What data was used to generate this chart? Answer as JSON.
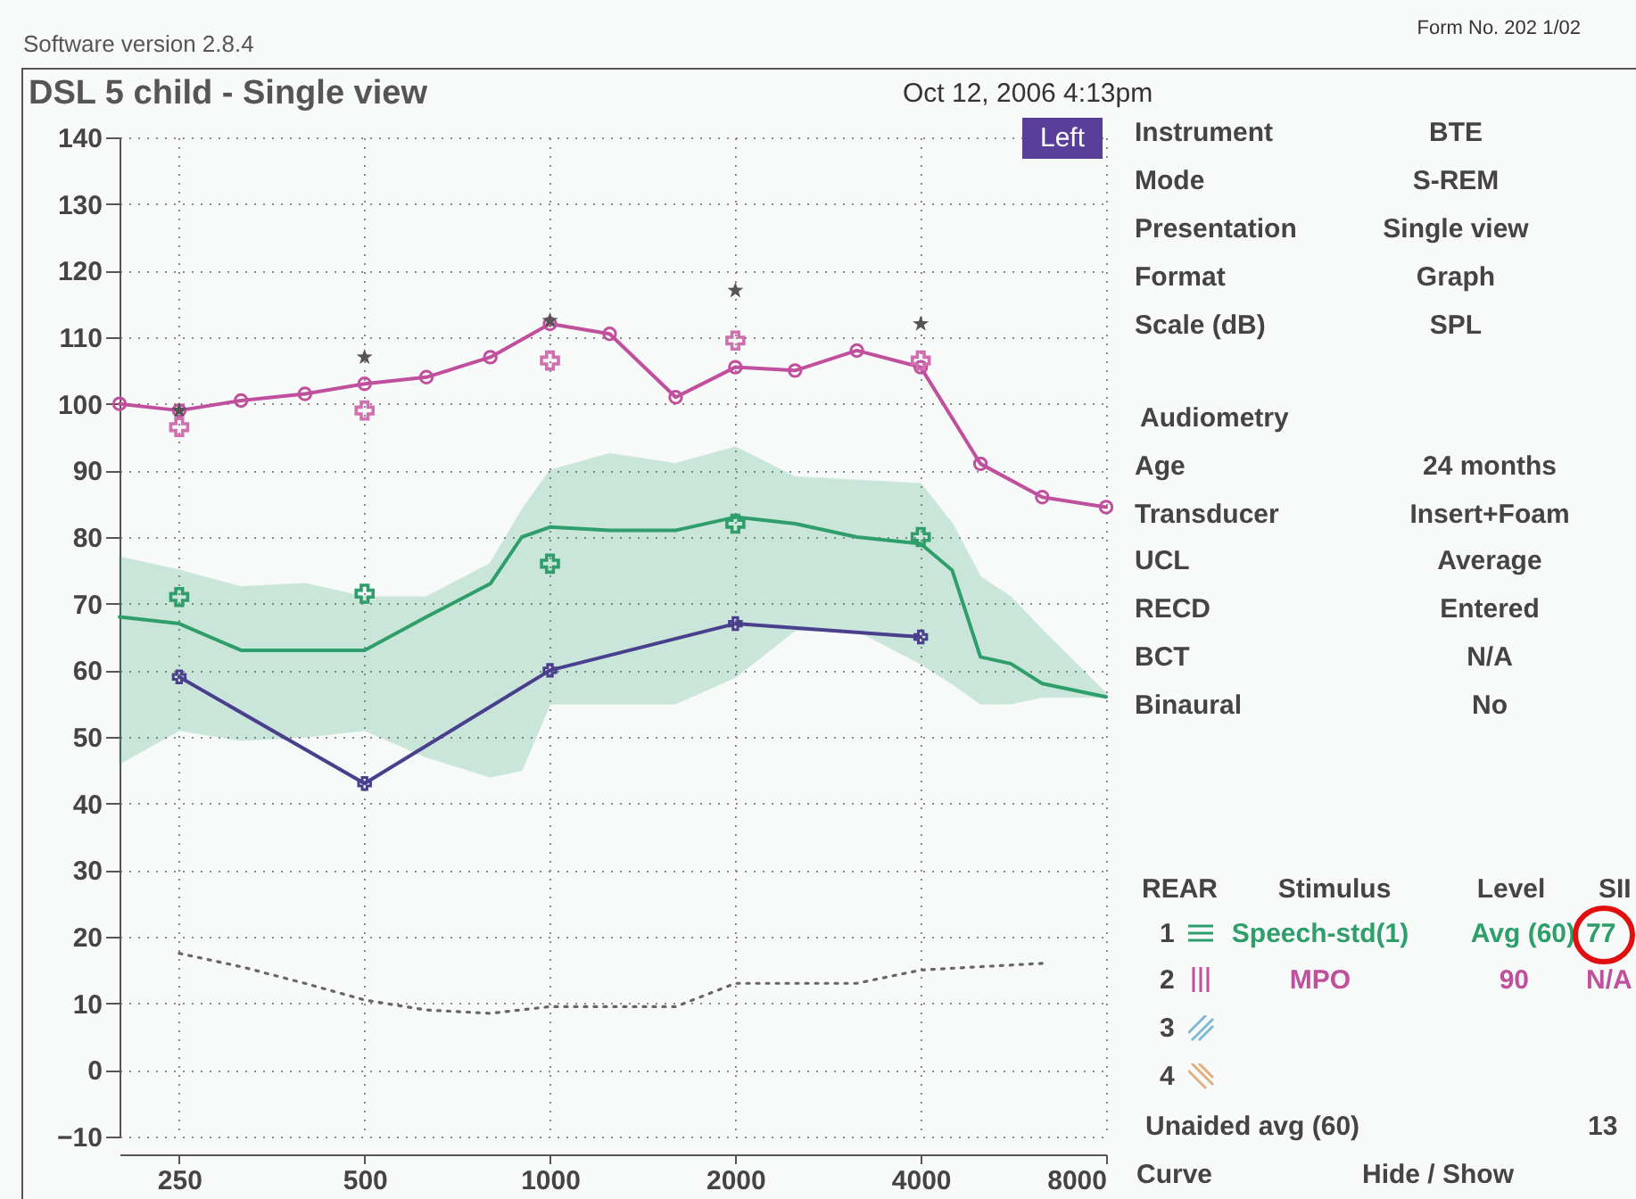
{
  "chart_data": {
    "type": "line",
    "title": "DSL 5 child - Single view",
    "subtitle": "Oct 12, 2006 4:13pm",
    "xlim": [
      200,
      8000
    ],
    "xticks": [
      250,
      500,
      1000,
      2000,
      4000,
      8000
    ],
    "log": "x",
    "ylim": [
      -10,
      140
    ],
    "yticks": [
      -10,
      0,
      10,
      20,
      30,
      40,
      50,
      60,
      70,
      80,
      90,
      100,
      110,
      120,
      130,
      140
    ],
    "grid": true,
    "legend": "right",
    "series": [
      {
        "name": "Speech-std(1)",
        "type": "line",
        "color": "#2e9e6a",
        "marker": "none",
        "x": [
          200,
          250,
          315,
          400,
          500,
          630,
          800,
          900,
          1000,
          1250,
          1600,
          2000,
          2500,
          3150,
          4000,
          4500,
          5000,
          5600,
          6300,
          8000
        ],
        "values": [
          68,
          67,
          63,
          63,
          63,
          68,
          73,
          80,
          81.5,
          81,
          81,
          83,
          82,
          80,
          79,
          75,
          62,
          61,
          58,
          56
        ],
        "lower": [
          46,
          51,
          49.5,
          50,
          51,
          47,
          44,
          45,
          55,
          55,
          55,
          59,
          66,
          66,
          61,
          58,
          55,
          55,
          56,
          56
        ],
        "upper": [
          77,
          75,
          72.5,
          73,
          71,
          71,
          76,
          84,
          90,
          92.5,
          91,
          93.5,
          89,
          88.5,
          88,
          82,
          74,
          71,
          66,
          56.5
        ]
      },
      {
        "name": "MPO",
        "type": "line",
        "color": "#c0509e",
        "marker": "circle",
        "x": [
          200,
          250,
          315,
          400,
          500,
          630,
          800,
          1000,
          1250,
          1600,
          2000,
          2500,
          3150,
          4000,
          5000,
          6300,
          8000
        ],
        "values": [
          100,
          99,
          100.5,
          101.5,
          103,
          104,
          107,
          112,
          110.5,
          101,
          105.5,
          105,
          108,
          105.5,
          91,
          86,
          84.5
        ]
      },
      {
        "type": "scatter",
        "color": "#2e9e6a",
        "marker": "cross",
        "x": [
          250,
          500,
          1000,
          2000,
          4000
        ],
        "values": [
          71,
          71.5,
          76,
          82,
          80
        ]
      },
      {
        "type": "scatter",
        "color": "#d070b0",
        "marker": "cross",
        "x": [
          250,
          500,
          1000,
          2000,
          4000
        ],
        "values": [
          96.5,
          99,
          106.5,
          109.5,
          106.5
        ]
      },
      {
        "type": "scatter",
        "color": "#555555",
        "marker": "star",
        "x": [
          250,
          500,
          1000,
          2000,
          4000
        ],
        "values": [
          99,
          107,
          112.5,
          117,
          112
        ]
      },
      {
        "type": "line",
        "color": "#4a3f8c",
        "marker": "cross",
        "x": [
          250,
          500,
          1000,
          2000,
          4000
        ],
        "values": [
          59,
          43,
          60,
          67,
          65
        ]
      },
      {
        "type": "line",
        "color": "#666666",
        "marker": "none",
        "line_style": "dotted",
        "x": [
          250,
          315,
          400,
          500,
          630,
          800,
          1000,
          1250,
          1600,
          2000,
          2500,
          3150,
          4000,
          5000,
          6300
        ],
        "values": [
          17.5,
          15.5,
          13,
          10.5,
          9,
          8.5,
          9.5,
          9.5,
          9.5,
          13,
          13,
          13,
          15,
          15.5,
          16
        ]
      }
    ],
    "annotations": [
      "Software version 2.8.4",
      "Form No. 202  1/02",
      "Left",
      "Instrument",
      "BTE",
      "Mode",
      "S-REM",
      "Presentation",
      "Single view",
      "Format",
      "Graph",
      "Scale (dB)",
      "SPL",
      "Audiometry",
      "Age",
      "24 months",
      "Transducer",
      "Insert+Foam",
      "UCL",
      "Average",
      "RECD",
      "Entered",
      "BCT",
      "N/A",
      "Binaural",
      "No",
      "REAR",
      "Stimulus",
      "Level",
      "SII",
      "1",
      "Avg (60)",
      "77",
      "2",
      "90",
      "N/A",
      "3",
      "4",
      "Unaided avg (60)",
      "13",
      "Curve",
      "Hide / Show"
    ]
  }
}
